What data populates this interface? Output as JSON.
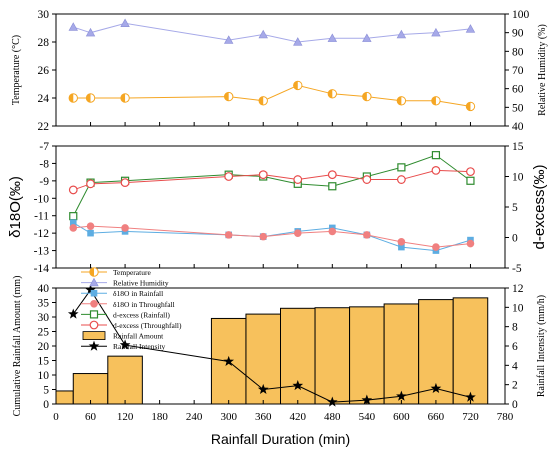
{
  "chart_data": [
    {
      "panel": "top",
      "type": "line",
      "x": [
        30,
        60,
        120,
        300,
        360,
        420,
        480,
        540,
        600,
        660,
        720
      ],
      "y_left": {
        "label": "Temperature (°C)",
        "ylim": [
          22,
          30
        ],
        "ticks": [
          "22",
          "24",
          "26",
          "28",
          "30"
        ]
      },
      "y_right": {
        "label": "Relative Humidity (%)",
        "ylim": [
          40,
          100
        ],
        "ticks": [
          "40",
          "50",
          "60",
          "70",
          "80",
          "90",
          "100"
        ]
      },
      "series": [
        {
          "name": "Temperature",
          "axis": "left",
          "color": "#F5A623",
          "marker": "circle-half",
          "values": [
            24.0,
            24.0,
            24.0,
            24.1,
            23.8,
            24.9,
            24.3,
            24.1,
            23.8,
            23.8,
            23.4
          ]
        },
        {
          "name": "Relative Humidity",
          "axis": "right",
          "color": "#A6A9E8",
          "marker": "triangle",
          "values": [
            93,
            90,
            95,
            86,
            89,
            85,
            87,
            87,
            89,
            90,
            92
          ]
        }
      ]
    },
    {
      "panel": "middle",
      "type": "line",
      "x": [
        30,
        60,
        120,
        300,
        360,
        420,
        480,
        540,
        600,
        660,
        720
      ],
      "y_left": {
        "label": "δ18O(‰)",
        "ylim": [
          -14,
          -7
        ],
        "ticks": [
          "-14",
          "-13",
          "-12",
          "-11",
          "-10",
          "-9",
          "-8",
          "-7"
        ]
      },
      "y_right": {
        "label": "d-excess(‰)",
        "ylim": [
          -5,
          15
        ],
        "ticks": [
          "-5",
          "0",
          "5",
          "10",
          "15"
        ]
      },
      "series": [
        {
          "name": "δ18O in Rainfall",
          "axis": "left",
          "color": "#5DADE2",
          "marker": "square",
          "values": [
            -11.4,
            -12.0,
            -11.9,
            -12.1,
            -12.2,
            -11.9,
            -11.7,
            -12.1,
            -12.8,
            -13.0,
            -12.4
          ]
        },
        {
          "name": "δ18O in Throughfall",
          "axis": "left",
          "color": "#F08080",
          "marker": "circle",
          "values": [
            -11.7,
            -11.6,
            -11.7,
            -12.1,
            -12.2,
            -12.0,
            -11.9,
            -12.1,
            -12.5,
            -12.8,
            -12.6
          ]
        },
        {
          "name": "d-excess (Rainfall)",
          "axis": "right",
          "color": "#2E8B2E",
          "marker": "square-open",
          "values": [
            3.5,
            9.0,
            9.3,
            10.3,
            10.0,
            8.8,
            8.4,
            10.0,
            11.5,
            13.5,
            9.3
          ]
        },
        {
          "name": "d-excess (Throughfall)",
          "axis": "right",
          "color": "#E84C4C",
          "marker": "circle-open",
          "values": [
            7.8,
            8.8,
            9.0,
            10.0,
            10.3,
            9.5,
            10.3,
            9.5,
            9.5,
            11.0,
            10.8
          ]
        }
      ]
    },
    {
      "panel": "bottom",
      "type": "bar",
      "x_bins": [
        [
          0,
          30
        ],
        [
          30,
          90
        ],
        [
          90,
          150
        ],
        [
          270,
          330
        ],
        [
          330,
          390
        ],
        [
          390,
          450
        ],
        [
          450,
          510
        ],
        [
          510,
          570
        ],
        [
          570,
          630
        ],
        [
          630,
          690
        ],
        [
          690,
          750
        ]
      ],
      "y_left": {
        "label": "Cumulative Rainfall Amount (mm)",
        "ylim": [
          0,
          40
        ],
        "ticks": [
          "0",
          "5",
          "10",
          "15",
          "20",
          "25",
          "30",
          "35",
          "40"
        ]
      },
      "y_right": {
        "label": "Rainfall Intensity (mm/h)",
        "ylim": [
          0,
          12
        ],
        "ticks": [
          "0",
          "2",
          "4",
          "6",
          "8",
          "10",
          "12"
        ]
      },
      "xlabel": "Rainfall Duration (min)",
      "xlim": [
        0,
        780
      ],
      "xticks": [
        "0",
        "60",
        "120",
        "180",
        "240",
        "300",
        "360",
        "420",
        "480",
        "540",
        "600",
        "660",
        "720",
        "780"
      ],
      "series": [
        {
          "name": "Rainfall Amount",
          "axis": "left",
          "type": "bar",
          "color": "#F7C15C",
          "values": [
            4.5,
            10.5,
            16.5,
            29.5,
            31.0,
            33.0,
            33.2,
            33.5,
            34.5,
            36.0,
            36.6
          ]
        },
        {
          "name": "Rainfall Intensity",
          "axis": "right",
          "type": "line",
          "color": "#000000",
          "marker": "star",
          "x": [
            30,
            60,
            120,
            300,
            360,
            420,
            480,
            540,
            600,
            660,
            720
          ],
          "values": [
            9.3,
            11.8,
            6.1,
            4.4,
            1.5,
            1.9,
            0.2,
            0.4,
            0.8,
            1.6,
            0.7
          ]
        }
      ]
    }
  ],
  "legend": {
    "position": "left-middle",
    "items": [
      "Temperature",
      "Relative Humidity",
      "δ18O in Rainfall",
      "δ18O in Throughfall",
      "d-excess (Rainfall)",
      "d-excess (Throughfall)",
      "Rainfall Amount",
      "Rainfall Intensity"
    ]
  }
}
